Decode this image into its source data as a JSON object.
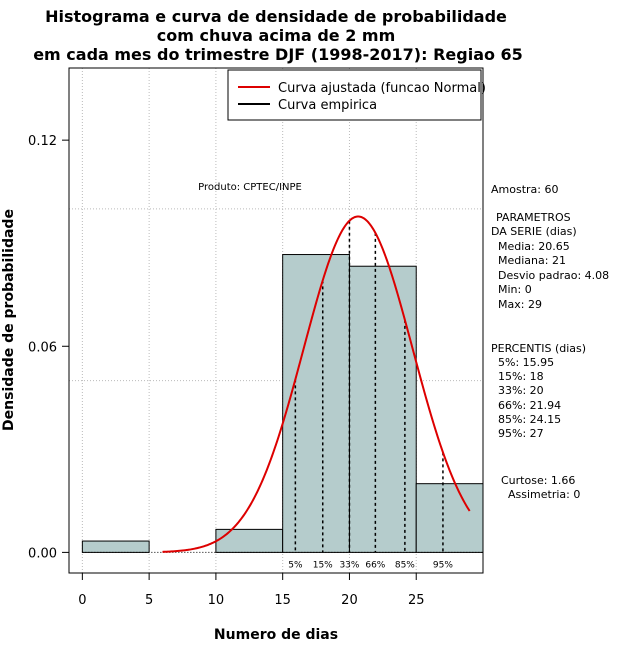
{
  "chart_data": {
    "type": "bar",
    "title_lines": [
      "Histograma e curva de densidade de probabilidade",
      "com chuva acima de 2 mm",
      "em cada mes do trimestre DJF (1998-2017): Regiao 65"
    ],
    "xlabel": "Numero de dias",
    "ylabel": "Densidade de probabilidade",
    "xlim": [
      -1,
      30
    ],
    "ylim": [
      -0.006,
      0.141
    ],
    "x_ticks": [
      0,
      5,
      10,
      15,
      20,
      25
    ],
    "x_tick_labels": [
      "0",
      "5",
      "10",
      "15",
      "20",
      "25"
    ],
    "y_ticks": [
      0.0,
      0.06,
      0.12
    ],
    "y_tick_labels": [
      "0.00",
      "0.06",
      "0.12"
    ],
    "grid": true,
    "grid_x": [
      0,
      5,
      10,
      15,
      20,
      25
    ],
    "grid_y": [
      0.05,
      0.1
    ],
    "histogram": [
      {
        "start": 0,
        "end": 5,
        "density": 0.0033
      },
      {
        "start": 10,
        "end": 15,
        "density": 0.0067
      },
      {
        "start": 15,
        "end": 20,
        "density": 0.0867
      },
      {
        "start": 20,
        "end": 25,
        "density": 0.0833
      },
      {
        "start": 25,
        "end": 30,
        "density": 0.02
      }
    ],
    "bar_color": "#b5cccc",
    "curve_color": "#dd0000",
    "normal_fit": {
      "mean": 20.65,
      "sd": 4.08,
      "x_range": [
        6,
        29
      ]
    },
    "percentile_lines": [
      {
        "x": 15.95,
        "label": "5%"
      },
      {
        "x": 18,
        "label": "15%"
      },
      {
        "x": 20,
        "label": "33%"
      },
      {
        "x": 21.94,
        "label": "66%"
      },
      {
        "x": 24.15,
        "label": "85%"
      },
      {
        "x": 27,
        "label": "95%"
      }
    ],
    "legend": {
      "placement": "top-right",
      "entries": [
        {
          "label": "Curva ajustada (funcao Normal)",
          "color": "#dd0000"
        },
        {
          "label": "Curva empirica",
          "color": "#000000"
        }
      ]
    },
    "annotation": "Produto: CPTEC/INPE"
  },
  "stats": {
    "sample": "Amostra: 60",
    "param_title_1": "PARAMETROS",
    "param_title_2": "DA SERIE (dias)",
    "params": [
      "Media: 20.65",
      "Mediana: 21",
      "Desvio padrao: 4.08",
      "Min: 0",
      "Max: 29"
    ],
    "pct_title": "PERCENTIS (dias)",
    "pcts": [
      "5%: 15.95",
      "15%: 18",
      "33%: 20",
      "66%: 21.94",
      "85%: 24.15",
      "95%: 27"
    ],
    "curtose": "Curtose: 1.66",
    "assimetria": "Assimetria: 0"
  }
}
